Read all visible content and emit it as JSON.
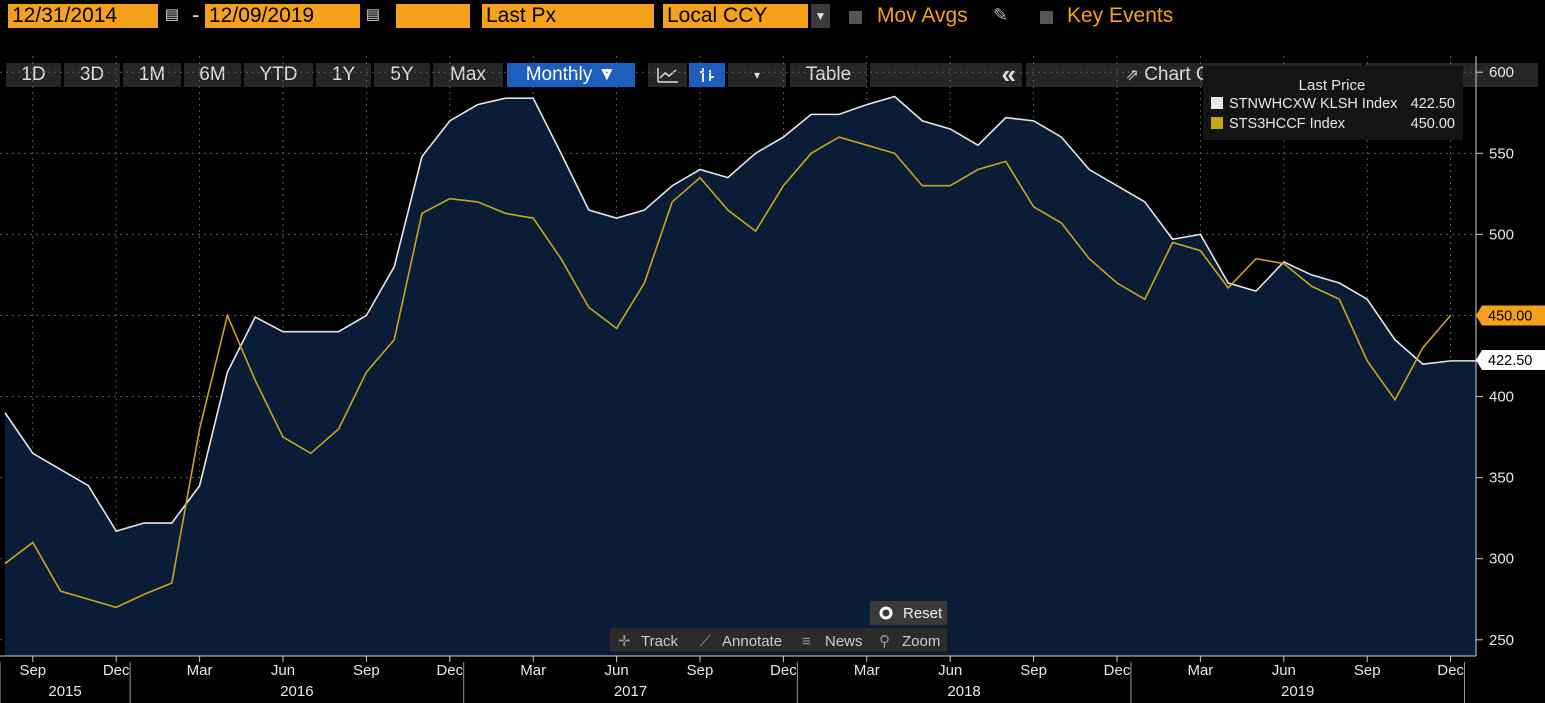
{
  "toolbar": {
    "start_date": "12/31/2014",
    "end_date": "12/09/2019",
    "field": "Last Px",
    "currency": "Local CCY",
    "mov_avgs": "Mov Avgs",
    "key_events": "Key Events",
    "ranges": [
      "1D",
      "3D",
      "1M",
      "6M",
      "YTD",
      "1Y",
      "5Y",
      "Max"
    ],
    "periodicity": "Monthly ▼",
    "table": "Table",
    "collapse": "«",
    "chart_content": "Chart Content"
  },
  "overlay": {
    "reset": "Reset",
    "track": "Track",
    "annotate": "Annotate",
    "news": "News",
    "zoom": "Zoom"
  },
  "colors": {
    "background": "#000000",
    "area_fill": "#0b1c36",
    "series_white": "#e6e6e6",
    "series_yellow": "#c9a51e",
    "accent_orange": "#f5a11b",
    "selected_blue": "#1a5fbf"
  },
  "chart_data": {
    "type": "area",
    "legend": {
      "title": "Last Price",
      "placement": "top-right"
    },
    "series": [
      {
        "name": "STNWHCXW KLSH Index",
        "last": "422.50",
        "color": "#e6e6e6",
        "fill": true,
        "values": [
          390,
          365,
          355,
          345,
          317,
          322,
          322,
          345,
          415,
          449,
          440,
          440,
          440,
          450,
          480,
          548,
          570,
          580,
          584,
          584,
          550,
          515,
          510,
          515,
          530,
          540,
          535,
          550,
          560,
          574,
          574,
          580,
          585,
          570,
          565,
          555,
          572,
          570,
          560,
          540,
          530,
          520,
          497,
          500,
          470,
          465,
          483,
          475,
          470,
          460,
          435,
          420,
          422,
          422
        ]
      },
      {
        "name": "STS3HCCF Index",
        "last": "450.00",
        "color": "#c9a51e",
        "fill": false,
        "values": [
          297,
          310,
          280,
          275,
          270,
          278,
          285,
          380,
          450,
          410,
          375,
          365,
          380,
          415,
          435,
          513,
          522,
          520,
          513,
          510,
          485,
          455,
          442,
          470,
          520,
          535,
          515,
          502,
          530,
          550,
          560,
          555,
          550,
          530,
          530,
          540,
          545,
          517,
          507,
          485,
          470,
          460,
          495,
          490,
          467,
          485,
          482,
          468,
          460,
          422,
          398,
          430,
          450,
          null
        ]
      }
    ],
    "ylim": [
      240,
      610
    ],
    "yticks": [
      250,
      300,
      350,
      400,
      450,
      500,
      550,
      600
    ],
    "ytick_labels": [
      "250",
      "300",
      "350",
      "400",
      "450",
      "500",
      "550",
      "600"
    ],
    "month_labels": [
      "Sep",
      "Dec",
      "Mar",
      "Jun",
      "Sep",
      "Dec",
      "Mar",
      "Jun",
      "Sep",
      "Dec",
      "Mar",
      "Jun",
      "Sep",
      "Dec",
      "Mar",
      "Jun",
      "Sep",
      "Dec"
    ],
    "year_labels": [
      "2015",
      "2016",
      "2017",
      "2018",
      "2019"
    ],
    "last_value_tags": [
      "450.00",
      "422.50"
    ],
    "grid": true
  }
}
